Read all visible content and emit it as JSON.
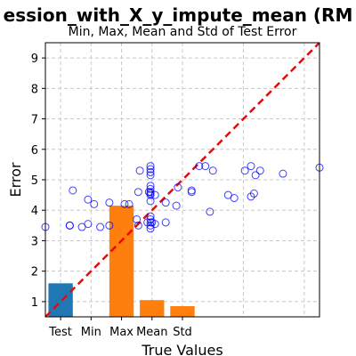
{
  "chart_data": {
    "type": "scatter",
    "title": "ession_with_X_y_impute_mean (RM",
    "subtitle": "Min, Max, Mean and Std of Test Error",
    "xlabel": "True Values",
    "ylabel": "Error",
    "xlim": [
      0.5,
      9.5
    ],
    "ylim": [
      0.5,
      9.5
    ],
    "grid": true,
    "yticks": [
      1,
      2,
      3,
      4,
      5,
      6,
      7,
      8,
      9
    ],
    "ytick_labels": [
      "1",
      "2",
      "3",
      "4",
      "5",
      "6",
      "7",
      "8",
      "9"
    ],
    "xtick_positions": [
      1,
      2,
      3,
      4,
      5
    ],
    "xtick_labels": [
      "Test",
      "Min",
      "Max",
      "Mean",
      "Std"
    ],
    "bars": [
      {
        "x": 1,
        "value": 1.6,
        "color": "#1f77b4"
      },
      {
        "x": 3,
        "value": 4.15,
        "color": "#ff7f0e"
      },
      {
        "x": 4,
        "value": 1.05,
        "color": "#ff7f0e"
      },
      {
        "x": 5,
        "value": 0.85,
        "color": "#ff7f0e"
      }
    ],
    "bar_base": 0.5,
    "bar_width": 0.8,
    "scatter": {
      "color": "#0000ff",
      "points": [
        [
          0.5,
          3.45
        ],
        [
          1.3,
          3.5
        ],
        [
          1.3,
          3.5
        ],
        [
          1.4,
          4.65
        ],
        [
          1.7,
          3.45
        ],
        [
          1.9,
          4.35
        ],
        [
          1.9,
          3.55
        ],
        [
          2.1,
          4.2
        ],
        [
          2.3,
          3.45
        ],
        [
          2.6,
          4.25
        ],
        [
          2.6,
          3.5
        ],
        [
          3.1,
          4.2
        ],
        [
          3.25,
          4.2
        ],
        [
          3.5,
          3.7
        ],
        [
          3.55,
          4.6
        ],
        [
          3.55,
          3.5
        ],
        [
          3.6,
          5.3
        ],
        [
          3.9,
          4.6
        ],
        [
          3.95,
          5.45
        ],
        [
          3.95,
          5.35
        ],
        [
          3.95,
          5.25
        ],
        [
          3.95,
          5.15
        ],
        [
          3.95,
          4.8
        ],
        [
          3.95,
          4.7
        ],
        [
          3.95,
          4.6
        ],
        [
          3.95,
          4.55
        ],
        [
          3.95,
          4.5
        ],
        [
          3.95,
          4.3
        ],
        [
          3.95,
          3.8
        ],
        [
          3.95,
          3.7
        ],
        [
          3.95,
          3.6
        ],
        [
          3.95,
          3.5
        ],
        [
          3.95,
          3.4
        ],
        [
          3.85,
          3.6
        ],
        [
          4.0,
          3.6
        ],
        [
          4.1,
          3.55
        ],
        [
          4.1,
          4.5
        ],
        [
          4.45,
          4.25
        ],
        [
          4.45,
          3.6
        ],
        [
          4.8,
          4.15
        ],
        [
          4.85,
          4.75
        ],
        [
          5.3,
          4.65
        ],
        [
          5.3,
          4.6
        ],
        [
          5.55,
          5.45
        ],
        [
          5.75,
          5.45
        ],
        [
          5.9,
          3.95
        ],
        [
          6.0,
          5.3
        ],
        [
          6.5,
          4.5
        ],
        [
          6.7,
          4.4
        ],
        [
          7.05,
          5.3
        ],
        [
          7.25,
          5.45
        ],
        [
          7.25,
          4.45
        ],
        [
          7.35,
          4.55
        ],
        [
          7.4,
          5.15
        ],
        [
          7.55,
          5.3
        ],
        [
          8.3,
          5.2
        ],
        [
          9.5,
          5.4
        ]
      ]
    },
    "diagonal": {
      "from": [
        0.5,
        0.5
      ],
      "to": [
        9.5,
        9.5
      ],
      "color": "#ff0000"
    },
    "colors": {
      "grid": "#c8c8c8",
      "axes": "#000000"
    }
  }
}
